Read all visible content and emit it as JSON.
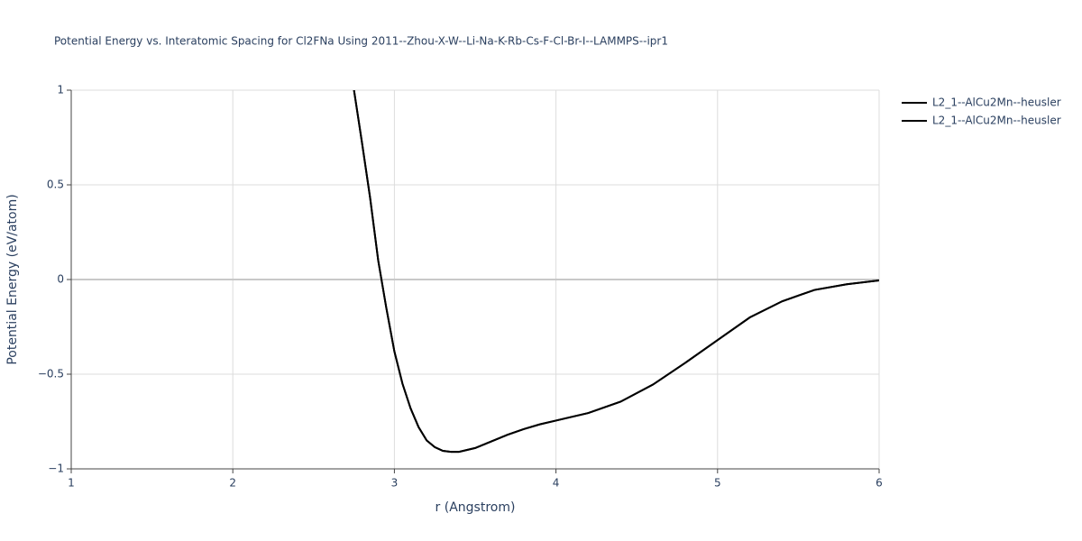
{
  "chart_data": {
    "type": "line",
    "title": "Potential Energy vs. Interatomic Spacing for Cl2FNa Using 2011--Zhou-X-W--Li-Na-K-Rb-Cs-F-Cl-Br-I--LAMMPS--ipr1",
    "x_label": "r (Angstrom)",
    "y_label": "Potential Energy (eV/atom)",
    "xlim": [
      1,
      6
    ],
    "ylim": [
      -1,
      1
    ],
    "xticks": [
      1,
      2,
      3,
      4,
      5,
      6
    ],
    "yticks": [
      {
        "value": -1,
        "label": "−1"
      },
      {
        "value": -0.5,
        "label": "−0.5"
      },
      0,
      0.5,
      1
    ],
    "grid": true,
    "legend": "right",
    "x": [
      2.75,
      2.8,
      2.85,
      2.9,
      2.95,
      3.0,
      3.05,
      3.1,
      3.15,
      3.2,
      3.25,
      3.3,
      3.35,
      3.4,
      3.5,
      3.6,
      3.7,
      3.8,
      3.9,
      4.0,
      4.2,
      4.4,
      4.6,
      4.8,
      5.0,
      5.2,
      5.4,
      5.6,
      5.8,
      6.0
    ],
    "series": [
      {
        "name": "L2_1--AlCu2Mn--heusler",
        "color": "#000000",
        "values": [
          1.0,
          0.72,
          0.43,
          0.1,
          -0.15,
          -0.38,
          -0.55,
          -0.68,
          -0.78,
          -0.85,
          -0.885,
          -0.905,
          -0.91,
          -0.91,
          -0.89,
          -0.855,
          -0.82,
          -0.79,
          -0.765,
          -0.745,
          -0.705,
          -0.645,
          -0.555,
          -0.44,
          -0.32,
          -0.2,
          -0.115,
          -0.055,
          -0.025,
          -0.005
        ]
      },
      {
        "name": "L2_1--AlCu2Mn--heusler",
        "color": "#000000",
        "values": [
          1.0,
          0.72,
          0.43,
          0.1,
          -0.15,
          -0.38,
          -0.55,
          -0.68,
          -0.78,
          -0.85,
          -0.885,
          -0.905,
          -0.91,
          -0.91,
          -0.89,
          -0.855,
          -0.82,
          -0.79,
          -0.765,
          -0.745,
          -0.705,
          -0.645,
          -0.555,
          -0.44,
          -0.32,
          -0.2,
          -0.115,
          -0.055,
          -0.025,
          -0.005
        ]
      }
    ]
  }
}
